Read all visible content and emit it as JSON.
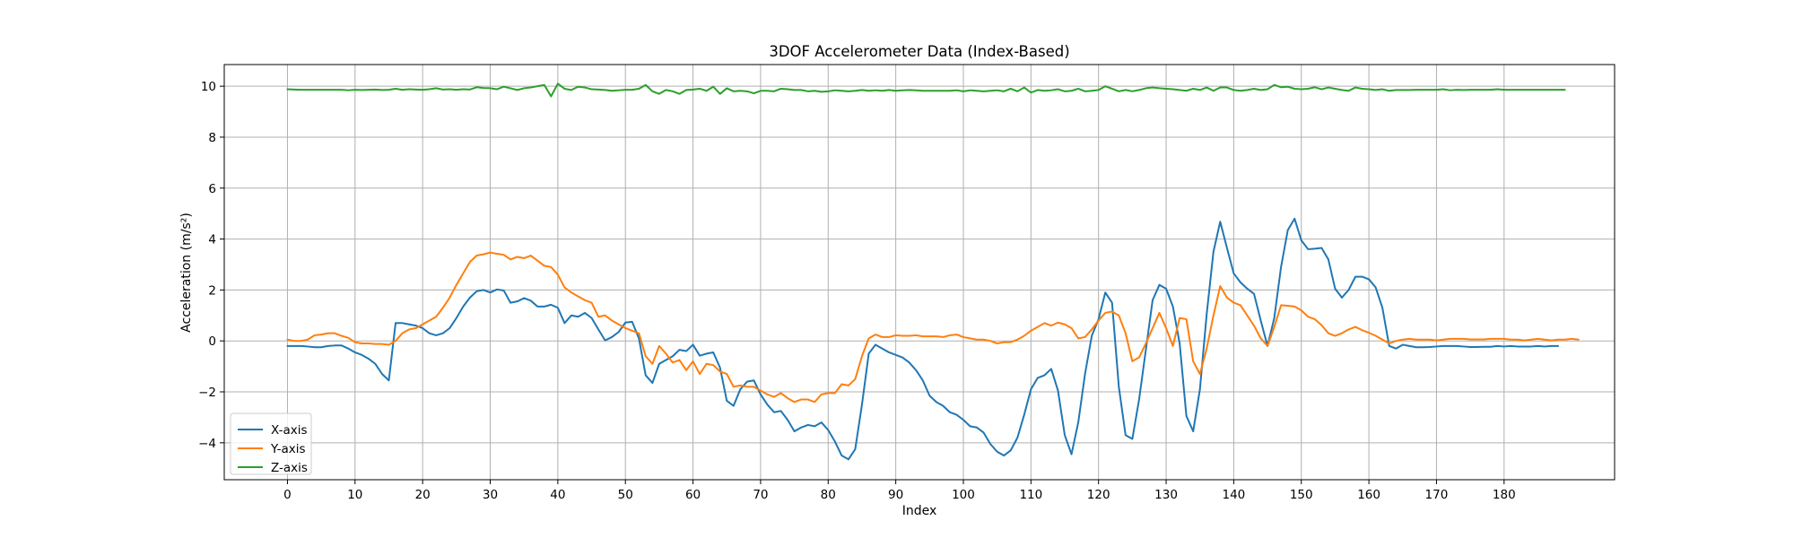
{
  "chart_data": {
    "type": "line",
    "title": "3DOF Accelerometer Data (Index-Based)",
    "xlabel": "Index",
    "ylabel": "Acceleration (m/s²)",
    "xlim": [
      -9.35,
      196.35
    ],
    "ylim": [
      -5.45,
      10.85
    ],
    "xticks": [
      0,
      10,
      20,
      30,
      40,
      50,
      60,
      70,
      80,
      90,
      100,
      110,
      120,
      130,
      140,
      150,
      160,
      170,
      180
    ],
    "yticks": [
      -4,
      -2,
      0,
      2,
      4,
      6,
      8,
      10
    ],
    "grid": true,
    "legend_position": "lower-left",
    "series": [
      {
        "name": "X-axis",
        "color": "#1f77b4",
        "values": [
          -0.2,
          -0.2,
          -0.2,
          -0.22,
          -0.25,
          -0.25,
          -0.2,
          -0.18,
          -0.18,
          -0.3,
          -0.45,
          -0.55,
          -0.7,
          -0.9,
          -1.3,
          -1.55,
          0.7,
          0.7,
          0.65,
          0.6,
          0.5,
          0.3,
          0.22,
          0.3,
          0.5,
          0.9,
          1.35,
          1.7,
          1.95,
          2.0,
          1.9,
          2.02,
          1.98,
          1.5,
          1.55,
          1.68,
          1.58,
          1.35,
          1.35,
          1.42,
          1.3,
          0.7,
          1.0,
          0.95,
          1.1,
          0.9,
          0.45,
          0.02,
          0.15,
          0.35,
          0.72,
          0.75,
          0.1,
          -1.35,
          -1.65,
          -0.9,
          -0.75,
          -0.6,
          -0.35,
          -0.4,
          -0.15,
          -0.58,
          -0.5,
          -0.45,
          -1.05,
          -2.35,
          -2.55,
          -1.9,
          -1.6,
          -1.55,
          -2.1,
          -2.5,
          -2.8,
          -2.75,
          -3.1,
          -3.55,
          -3.4,
          -3.3,
          -3.35,
          -3.2,
          -3.5,
          -3.95,
          -4.5,
          -4.65,
          -4.25,
          -2.5,
          -0.5,
          -0.15,
          -0.3,
          -0.45,
          -0.55,
          -0.65,
          -0.85,
          -1.15,
          -1.55,
          -2.15,
          -2.4,
          -2.55,
          -2.8,
          -2.9,
          -3.1,
          -3.35,
          -3.4,
          -3.6,
          -4.05,
          -4.35,
          -4.5,
          -4.3,
          -3.8,
          -2.9,
          -1.9,
          -1.45,
          -1.35,
          -1.1,
          -1.95,
          -3.7,
          -4.45,
          -3.2,
          -1.3,
          0.2,
          0.85,
          1.9,
          1.5,
          -1.8,
          -3.7,
          -3.85,
          -2.3,
          -0.35,
          1.6,
          2.2,
          2.05,
          1.35,
          -0.1,
          -2.95,
          -3.55,
          -1.9,
          1.05,
          3.5,
          4.68,
          3.65,
          2.65,
          2.3,
          2.05,
          1.85,
          0.8,
          -0.2,
          0.9,
          2.9,
          4.35,
          4.8,
          3.95,
          3.6,
          3.62,
          3.65,
          3.2,
          2.05,
          1.7,
          2.0,
          2.52,
          2.52,
          2.42,
          2.1,
          1.3,
          -0.2,
          -0.3,
          -0.15,
          -0.2,
          -0.25,
          -0.25,
          -0.24,
          -0.22,
          -0.2,
          -0.2,
          -0.2,
          -0.22,
          -0.24,
          -0.24,
          -0.23,
          -0.23,
          -0.2,
          -0.22,
          -0.2,
          -0.22,
          -0.22,
          -0.22,
          -0.2,
          -0.22,
          -0.2,
          -0.2
        ]
      },
      {
        "name": "Y-axis",
        "color": "#ff7f0e",
        "values": [
          0.05,
          0.0,
          0.0,
          0.05,
          0.22,
          0.25,
          0.3,
          0.3,
          0.2,
          0.12,
          -0.05,
          -0.1,
          -0.1,
          -0.12,
          -0.12,
          -0.15,
          0.0,
          0.3,
          0.45,
          0.5,
          0.65,
          0.8,
          0.95,
          1.3,
          1.7,
          2.2,
          2.65,
          3.1,
          3.35,
          3.4,
          3.47,
          3.42,
          3.38,
          3.2,
          3.3,
          3.25,
          3.35,
          3.15,
          2.95,
          2.9,
          2.6,
          2.1,
          1.9,
          1.75,
          1.6,
          1.5,
          0.95,
          1.0,
          0.8,
          0.65,
          0.5,
          0.4,
          0.3,
          -0.6,
          -0.9,
          -0.2,
          -0.5,
          -0.85,
          -0.75,
          -1.15,
          -0.8,
          -1.3,
          -0.9,
          -0.95,
          -1.2,
          -1.3,
          -1.8,
          -1.75,
          -1.8,
          -1.8,
          -1.95,
          -2.1,
          -2.2,
          -2.05,
          -2.25,
          -2.4,
          -2.3,
          -2.3,
          -2.4,
          -2.1,
          -2.05,
          -2.05,
          -1.7,
          -1.75,
          -1.5,
          -0.6,
          0.1,
          0.25,
          0.15,
          0.15,
          0.22,
          0.2,
          0.2,
          0.22,
          0.18,
          0.18,
          0.18,
          0.15,
          0.22,
          0.25,
          0.15,
          0.1,
          0.05,
          0.05,
          0.0,
          -0.1,
          -0.05,
          -0.05,
          0.05,
          0.2,
          0.4,
          0.55,
          0.7,
          0.6,
          0.72,
          0.65,
          0.5,
          0.1,
          0.15,
          0.45,
          0.8,
          1.1,
          1.15,
          1.0,
          0.3,
          -0.8,
          -0.65,
          -0.1,
          0.5,
          1.1,
          0.5,
          -0.2,
          0.9,
          0.85,
          -0.8,
          -1.3,
          -0.3,
          1.0,
          2.15,
          1.7,
          1.5,
          1.4,
          1.0,
          0.6,
          0.1,
          -0.2,
          0.55,
          1.4,
          1.38,
          1.35,
          1.2,
          0.95,
          0.85,
          0.62,
          0.3,
          0.2,
          0.3,
          0.45,
          0.55,
          0.42,
          0.32,
          0.2,
          0.05,
          -0.1,
          0.0,
          0.05,
          0.08,
          0.05,
          0.05,
          0.05,
          0.02,
          0.05,
          0.08,
          0.08,
          0.08,
          0.06,
          0.06,
          0.06,
          0.08,
          0.08,
          0.08,
          0.05,
          0.05,
          0.02,
          0.05,
          0.08,
          0.05,
          0.02,
          0.05,
          0.05,
          0.08,
          0.05
        ]
      },
      {
        "name": "Z-axis",
        "color": "#2ca02c",
        "values": [
          9.88,
          9.87,
          9.86,
          9.86,
          9.86,
          9.86,
          9.86,
          9.86,
          9.86,
          9.84,
          9.86,
          9.85,
          9.86,
          9.87,
          9.85,
          9.86,
          9.9,
          9.86,
          9.88,
          9.87,
          9.86,
          9.88,
          9.92,
          9.87,
          9.88,
          9.86,
          9.88,
          9.87,
          9.96,
          9.93,
          9.92,
          9.88,
          9.98,
          9.92,
          9.85,
          9.92,
          9.95,
          10.0,
          10.05,
          9.6,
          10.1,
          9.9,
          9.85,
          9.98,
          9.95,
          9.88,
          9.87,
          9.85,
          9.82,
          9.84,
          9.86,
          9.86,
          9.9,
          10.05,
          9.8,
          9.7,
          9.85,
          9.8,
          9.7,
          9.85,
          9.87,
          9.9,
          9.82,
          9.98,
          9.7,
          9.92,
          9.8,
          9.82,
          9.8,
          9.72,
          9.82,
          9.82,
          9.8,
          9.9,
          9.88,
          9.85,
          9.85,
          9.8,
          9.82,
          9.78,
          9.8,
          9.84,
          9.82,
          9.8,
          9.82,
          9.85,
          9.82,
          9.84,
          9.82,
          9.85,
          9.82,
          9.84,
          9.85,
          9.84,
          9.82,
          9.82,
          9.82,
          9.82,
          9.82,
          9.84,
          9.8,
          9.84,
          9.82,
          9.8,
          9.82,
          9.84,
          9.8,
          9.9,
          9.8,
          9.95,
          9.75,
          9.85,
          9.82,
          9.84,
          9.88,
          9.8,
          9.82,
          9.9,
          9.8,
          9.82,
          9.85,
          10.0,
          9.9,
          9.8,
          9.85,
          9.8,
          9.85,
          9.92,
          9.95,
          9.92,
          9.9,
          9.88,
          9.85,
          9.82,
          9.9,
          9.85,
          9.95,
          9.82,
          9.95,
          9.95,
          9.85,
          9.82,
          9.85,
          9.9,
          9.85,
          9.88,
          10.05,
          9.96,
          9.98,
          9.9,
          9.88,
          9.9,
          9.96,
          9.88,
          9.95,
          9.9,
          9.85,
          9.82,
          9.95,
          9.9,
          9.88,
          9.85,
          9.88,
          9.82,
          9.85,
          9.85,
          9.85,
          9.86,
          9.86,
          9.86,
          9.86,
          9.88,
          9.84,
          9.86,
          9.85,
          9.86,
          9.86,
          9.86,
          9.86,
          9.88,
          9.86,
          9.86,
          9.86,
          9.86,
          9.86,
          9.86,
          9.86,
          9.86,
          9.86,
          9.86
        ]
      }
    ]
  }
}
